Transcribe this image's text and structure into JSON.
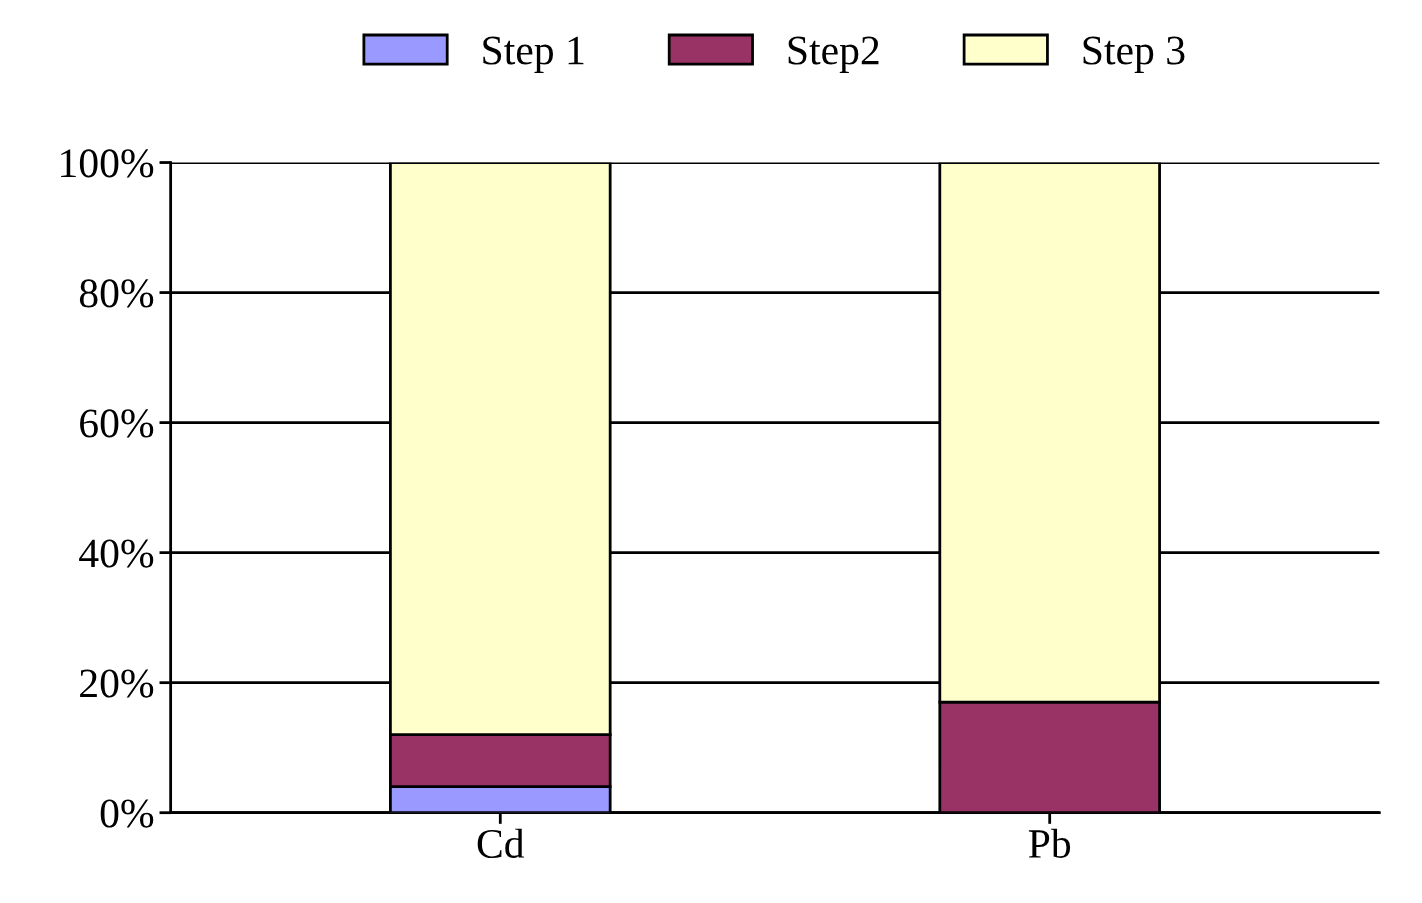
{
  "chart_data": {
    "type": "bar",
    "stacked": true,
    "categories": [
      "Cd",
      "Pb"
    ],
    "series": [
      {
        "name": "Step 1",
        "color": "#9999ff",
        "values": [
          4,
          0
        ]
      },
      {
        "name": "Step2",
        "color": "#993366",
        "values": [
          8,
          17
        ]
      },
      {
        "name": "Step 3",
        "color": "#ffffcc",
        "values": [
          88,
          83
        ]
      }
    ],
    "ylim": [
      0,
      100
    ],
    "yticks": [
      {
        "value": 0,
        "label": "0%"
      },
      {
        "value": 20,
        "label": "20%"
      },
      {
        "value": 40,
        "label": "40%"
      },
      {
        "value": 60,
        "label": "60%"
      },
      {
        "value": 80,
        "label": "80%"
      },
      {
        "value": 100,
        "label": "100%"
      }
    ],
    "grid": "y",
    "legend": "top"
  }
}
